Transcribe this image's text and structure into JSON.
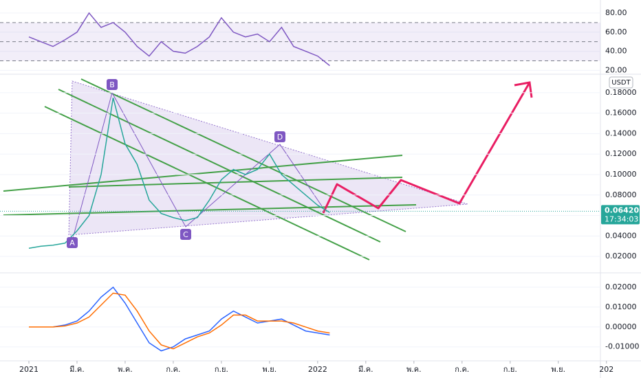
{
  "chart_data": [
    {
      "type": "line",
      "name": "RSI",
      "x": [
        0,
        0.5,
        1,
        1.5,
        2,
        2.5,
        3,
        3.5,
        4,
        4.5,
        5,
        5.5,
        6,
        6.5,
        7,
        7.5,
        8,
        8.5,
        9,
        9.5,
        10,
        10.5,
        11,
        11.5,
        12,
        12.5
      ],
      "series": [
        {
          "name": "RSI",
          "color": "#7e57c2",
          "values": [
            55,
            50,
            45,
            52,
            60,
            80,
            65,
            70,
            60,
            45,
            35,
            50,
            40,
            38,
            45,
            55,
            75,
            60,
            55,
            58,
            50,
            65,
            45,
            40,
            35,
            25
          ]
        }
      ],
      "xlim": [
        -1.2,
        23.75
      ],
      "ylim": [
        16,
        90
      ],
      "yticks": [
        {
          "value": 80,
          "label": "80.00"
        },
        {
          "value": 60,
          "label": "60.00"
        },
        {
          "value": 40,
          "label": "40.00"
        },
        {
          "value": 20,
          "label": "20.00"
        }
      ],
      "band_levels": [
        30,
        50,
        70
      ]
    },
    {
      "type": "line",
      "name": "Price",
      "x": [
        0,
        0.5,
        1,
        1.5,
        2,
        2.5,
        3,
        3.5,
        4,
        4.5,
        5,
        5.5,
        6,
        6.5,
        7,
        7.5,
        8,
        8.5,
        9,
        9.5,
        10,
        10.5,
        11,
        11.5,
        12,
        12.5
      ],
      "series": [
        {
          "name": "Price",
          "color": "#26a69a",
          "values": [
            0.028,
            0.03,
            0.031,
            0.033,
            0.045,
            0.06,
            0.1,
            0.175,
            0.13,
            0.11,
            0.075,
            0.062,
            0.058,
            0.055,
            0.058,
            0.075,
            0.095,
            0.105,
            0.1,
            0.105,
            0.12,
            0.1,
            0.09,
            0.08,
            0.07,
            0.063
          ]
        }
      ],
      "xlim": [
        -1.2,
        23.75
      ],
      "ylim": [
        0.004,
        0.198
      ],
      "yticks": [
        {
          "value": 0.18,
          "label": "0.18000"
        },
        {
          "value": 0.16,
          "label": "0.16000"
        },
        {
          "value": 0.14,
          "label": "0.14000"
        },
        {
          "value": 0.12,
          "label": "0.12000"
        },
        {
          "value": 0.1,
          "label": "0.10000"
        },
        {
          "value": 0.08,
          "label": "0.08000"
        },
        {
          "value": 0.06,
          "label": "0.06000"
        },
        {
          "value": 0.04,
          "label": "0.04000"
        },
        {
          "value": 0.02,
          "label": "0.02000"
        }
      ],
      "currency": "USDT",
      "last_price": {
        "value": 0.0642,
        "label": "0.06420"
      },
      "countdown": "17:34:03",
      "annotations": [
        "A",
        "B",
        "C",
        "D"
      ]
    },
    {
      "type": "line",
      "name": "MACD",
      "x": [
        0,
        0.5,
        1,
        1.5,
        2,
        2.5,
        3,
        3.5,
        4,
        4.5,
        5,
        5.5,
        6,
        6.5,
        7,
        7.5,
        8,
        8.5,
        9,
        9.5,
        10,
        10.5,
        11,
        11.5,
        12,
        12.5
      ],
      "series": [
        {
          "name": "MACD",
          "color": "#2962ff",
          "values": [
            0,
            0,
            0,
            0.001,
            0.003,
            0.008,
            0.015,
            0.02,
            0.012,
            0.002,
            -0.008,
            -0.012,
            -0.01,
            -0.006,
            -0.004,
            -0.002,
            0.004,
            0.008,
            0.005,
            0.002,
            0.003,
            0.004,
            0.001,
            -0.002,
            -0.003,
            -0.004
          ]
        },
        {
          "name": "Signal",
          "color": "#ff6d00",
          "values": [
            0,
            0,
            0,
            0.0005,
            0.002,
            0.005,
            0.011,
            0.017,
            0.016,
            0.008,
            -0.002,
            -0.009,
            -0.011,
            -0.008,
            -0.005,
            -0.003,
            0.001,
            0.006,
            0.006,
            0.003,
            0.003,
            0.003,
            0.002,
            0,
            -0.002,
            -0.003
          ]
        }
      ],
      "xlim": [
        -1.2,
        23.75
      ],
      "ylim": [
        -0.017,
        0.0272
      ],
      "yticks": [
        {
          "value": 0.02,
          "label": "0.02000"
        },
        {
          "value": 0.01,
          "label": "0.01000"
        },
        {
          "value": 0,
          "label": "0.00000"
        },
        {
          "value": -0.01,
          "label": "-0.01000"
        }
      ],
      "xticks": [
        {
          "value": 0,
          "label": "2021"
        },
        {
          "value": 2,
          "label": "มี.ค."
        },
        {
          "value": 4,
          "label": "พ.ค."
        },
        {
          "value": 6,
          "label": "ก.ค."
        },
        {
          "value": 8,
          "label": "ก.ย."
        },
        {
          "value": 10,
          "label": "พ.ย."
        },
        {
          "value": 12,
          "label": "2022"
        },
        {
          "value": 14,
          "label": "มี.ค."
        },
        {
          "value": 16,
          "label": "พ.ค."
        },
        {
          "value": 18,
          "label": "ก.ค."
        },
        {
          "value": 20,
          "label": "ก.ย."
        },
        {
          "value": 22,
          "label": "พ.ย."
        },
        {
          "value": 24,
          "label": "202"
        }
      ]
    }
  ]
}
